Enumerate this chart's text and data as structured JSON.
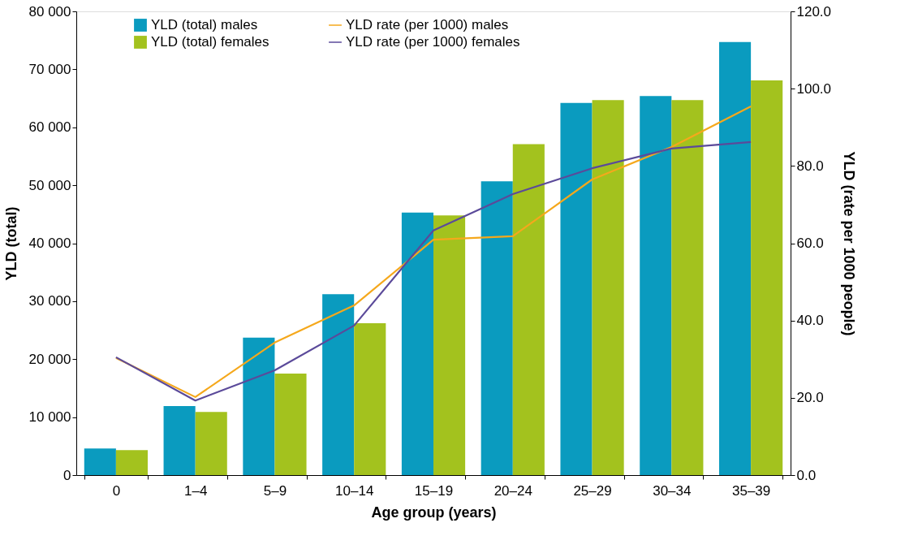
{
  "chart_data": {
    "type": "bar",
    "xlabel": "Age group (years)",
    "ylabel": "YLD (total)",
    "y2label": "YLD (rate per 1000 people)",
    "categories": [
      "0",
      "1–4",
      "5–9",
      "10–14",
      "15–19",
      "20–24",
      "25–29",
      "30–34",
      "35–39"
    ],
    "series": [
      {
        "name": "YLD (total) males",
        "type": "bar",
        "color": "#0a9bbf",
        "values": [
          4600,
          11900,
          23700,
          31200,
          45300,
          50700,
          64200,
          65400,
          74700
        ]
      },
      {
        "name": "YLD (total) females",
        "type": "bar",
        "color": "#a3c21e",
        "values": [
          4300,
          10900,
          17500,
          26200,
          44800,
          57100,
          64700,
          64700,
          68100
        ]
      },
      {
        "name": "YLD rate (per 1000) males",
        "type": "line",
        "axis": "y2",
        "color": "#f5a81c",
        "values": [
          30.3,
          20.2,
          34.3,
          43.9,
          60.9,
          61.8,
          76.5,
          84.9,
          95.4
        ]
      },
      {
        "name": "YLD rate (per 1000) females",
        "type": "line",
        "axis": "y2",
        "color": "#5b4a9a",
        "values": [
          30.5,
          19.3,
          27.1,
          38.7,
          63.3,
          72.7,
          79.4,
          84.5,
          86.2
        ]
      }
    ],
    "ylim": [
      0,
      80000
    ],
    "yticks": [
      0,
      {
        "value": 10000,
        "label": "10 000"
      },
      {
        "value": 20000,
        "label": "20 000"
      },
      {
        "value": 30000,
        "label": "30 000"
      },
      {
        "value": 40000,
        "label": "40 000"
      },
      {
        "value": 50000,
        "label": "50 000"
      },
      {
        "value": 60000,
        "label": "60 000"
      },
      {
        "value": 70000,
        "label": "70 000"
      },
      {
        "value": 80000,
        "label": "80 000"
      }
    ],
    "y2lim": [
      0,
      120
    ],
    "y2ticks": [
      {
        "value": 0,
        "label": "0.0"
      },
      {
        "value": 20,
        "label": "20.0"
      },
      {
        "value": 40,
        "label": "40.0"
      },
      {
        "value": 60,
        "label": "60.0"
      },
      {
        "value": 80,
        "label": "80.0"
      },
      {
        "value": 100,
        "label": "100.0"
      },
      {
        "value": 120,
        "label": "120.0"
      }
    ],
    "grid": false,
    "legend": "top left",
    "marker": "none",
    "line_style": "solid"
  }
}
